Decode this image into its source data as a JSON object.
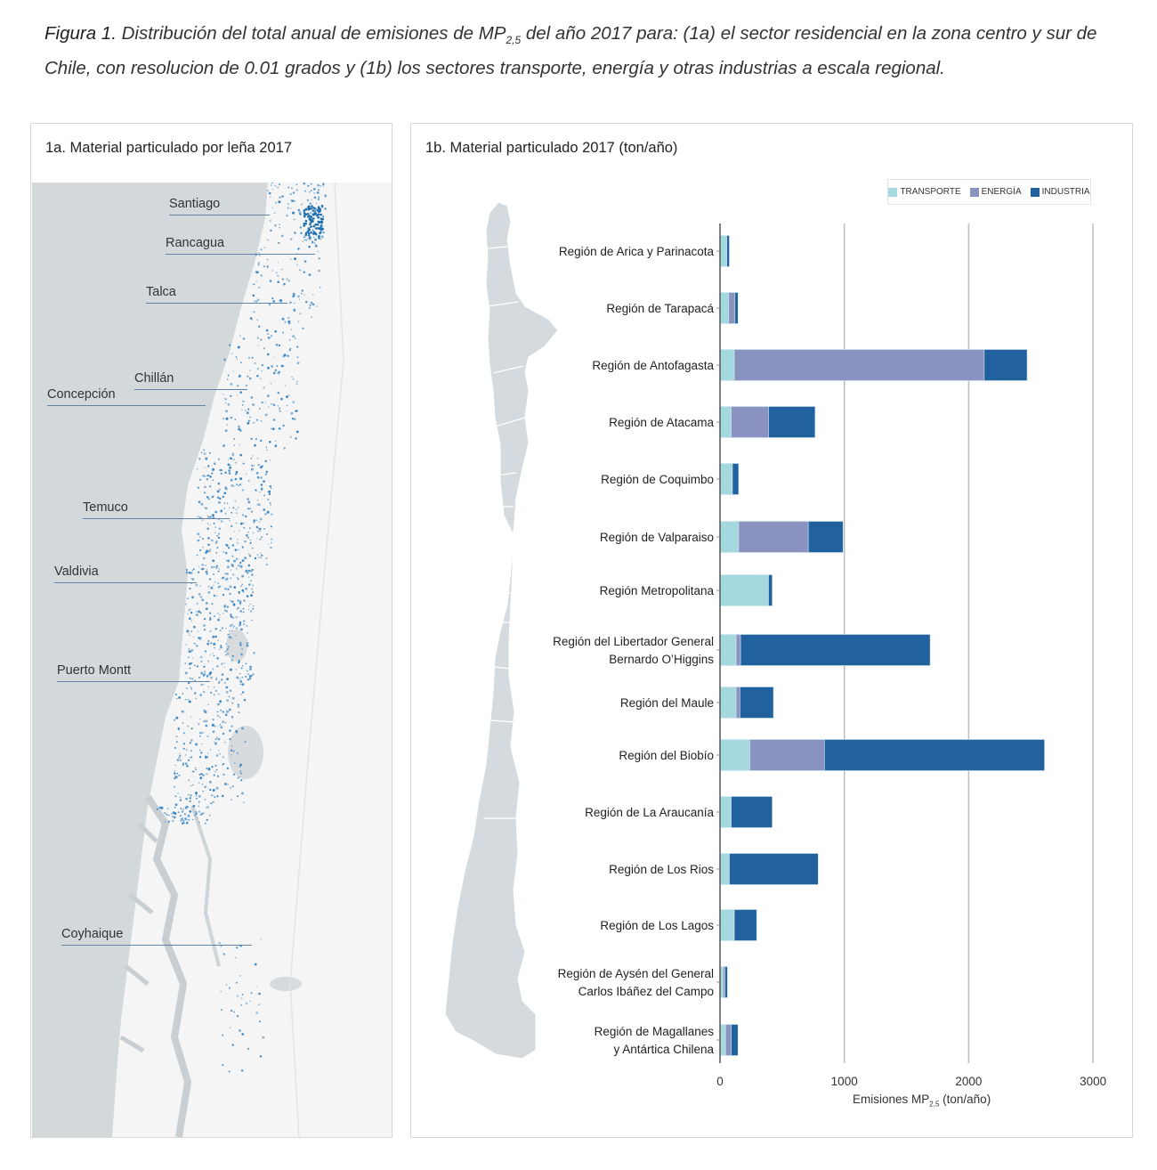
{
  "caption": {
    "figure_label": "Figura 1.",
    "text_before_sub": " Distribución del total anual de emisiones de MP",
    "subscript": "2,5",
    "text_after_sub": "  del año 2017 para: (1a) el sector residencial en la zona centro y sur de Chile, con resolucion de 0.01 grados y (1b) los sectores transporte, energía y otras industrias a escala regional."
  },
  "panel_a": {
    "title": "1a. Material particulado por leña 2017",
    "cities": [
      "Santiago",
      "Rancagua",
      "Talca",
      "Chillán",
      "Concepción",
      "Temuco",
      "Valdivia",
      "Puerto Montt",
      "Coyhaique"
    ]
  },
  "panel_b": {
    "title": "1b. Material particulado 2017 (ton/año)",
    "xlabel_main": "Emisiones MP",
    "xlabel_sub": "2,5",
    "xlabel_unit": " (ton/año)"
  },
  "colors": {
    "transporte": "#a5d8df",
    "energia": "#8a92bf",
    "industria": "#21619d",
    "ocean": "#d3d8db",
    "land": "#f4f5f4",
    "dots": "#2b7bbd",
    "grid": "#bdbdbd"
  },
  "chart_data": {
    "type": "bar",
    "orientation": "horizontal",
    "stacked": true,
    "title": "1b. Material particulado 2017 (ton/año)",
    "xlabel": "Emisiones MP2,5 (ton/año)",
    "ylabel": "",
    "xlim": [
      0,
      3000
    ],
    "xticks": [
      "0",
      "1000",
      "2000",
      "3000"
    ],
    "grid": true,
    "legend_position": "top-right",
    "categories": [
      [
        "Región de Arica y Parinacota"
      ],
      [
        "Región de Tarapacá"
      ],
      [
        "Región de Antofagasta"
      ],
      [
        "Región de Atacama"
      ],
      [
        "Región de Coquimbo"
      ],
      [
        "Región de Valparaiso"
      ],
      [
        "Región Metropolitana"
      ],
      [
        "Región del Libertador General",
        "Bernardo O’Higgins"
      ],
      [
        "Región del Maule"
      ],
      [
        "Región del Biobío"
      ],
      [
        "Región de La Araucanía"
      ],
      [
        "Región de Los Rios"
      ],
      [
        "Región de Los Lagos"
      ],
      [
        "Región de Aysén del General",
        "Carlos Ibáñez del Campo"
      ],
      [
        "Región de Magallanes",
        "y Antártica Chilena"
      ]
    ],
    "series": [
      {
        "name": "TRANSPORTE",
        "values": [
          55,
          70,
          115,
          90,
          100,
          150,
          390,
          130,
          130,
          240,
          90,
          75,
          115,
          25,
          45
        ]
      },
      {
        "name": "ENERGÍA",
        "values": [
          0,
          50,
          2010,
          300,
          0,
          560,
          0,
          35,
          30,
          600,
          0,
          0,
          0,
          15,
          45
        ]
      },
      {
        "name": "INDUSTRIA",
        "values": [
          20,
          25,
          345,
          375,
          50,
          280,
          30,
          1525,
          270,
          1770,
          330,
          715,
          180,
          20,
          55
        ]
      }
    ]
  }
}
